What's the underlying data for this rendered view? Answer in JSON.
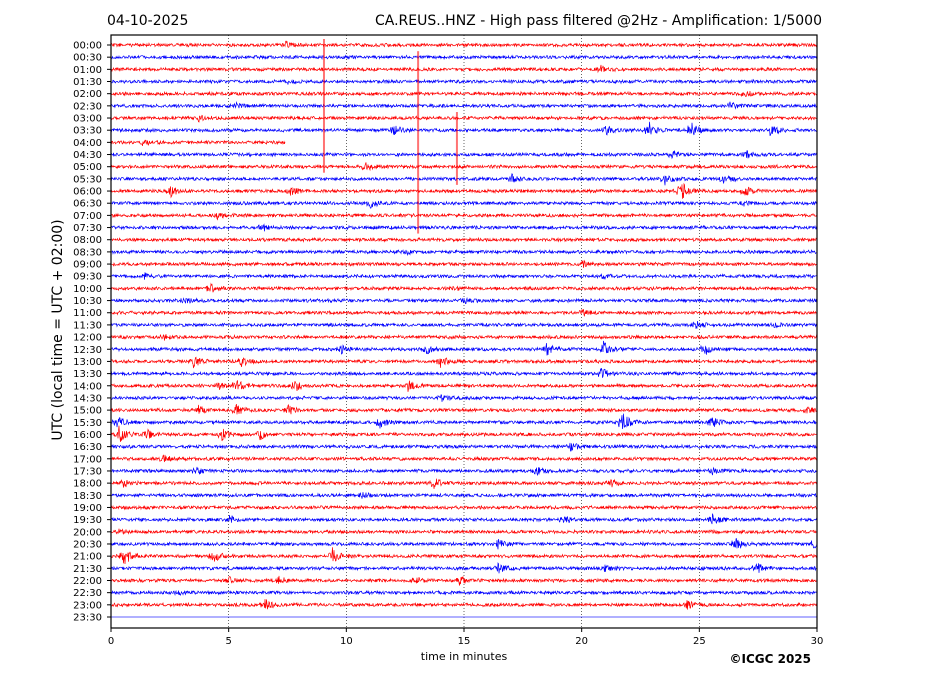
{
  "chart_data": {
    "type": "line",
    "date": "04-10-2025",
    "title": "CA.REUS..HNZ - High pass filtered @2Hz - Amplification: 1/5000",
    "xlabel": "time in minutes",
    "ylabel": "UTC (local time = UTC + 02:00)",
    "xlim": [
      0,
      30
    ],
    "xticks": [
      "0",
      "5",
      "10",
      "15",
      "20",
      "25",
      "30"
    ],
    "grid": "vertical dotted at every 5 minutes",
    "row_labels": [
      "00:00",
      "00:30",
      "01:00",
      "01:30",
      "02:00",
      "02:30",
      "03:00",
      "03:30",
      "04:00",
      "04:30",
      "05:00",
      "05:30",
      "06:00",
      "06:30",
      "07:00",
      "07:30",
      "08:00",
      "08:30",
      "09:00",
      "09:30",
      "10:00",
      "10:30",
      "11:00",
      "11:30",
      "12:00",
      "12:30",
      "13:00",
      "13:30",
      "14:00",
      "14:30",
      "15:00",
      "15:30",
      "16:00",
      "16:30",
      "17:00",
      "17:30",
      "18:00",
      "18:30",
      "19:00",
      "19:30",
      "20:00",
      "20:30",
      "21:00",
      "21:30",
      "22:00",
      "22:30",
      "23:00",
      "23:30"
    ],
    "series_colors": [
      "#ff0000",
      "#0000ff"
    ],
    "events": [
      [
        0,
        7.4,
        3
      ],
      [
        2,
        20.8,
        3
      ],
      [
        3,
        7.5,
        2
      ],
      [
        4,
        26.9,
        3
      ],
      [
        5,
        5.3,
        3
      ],
      [
        5,
        26.3,
        3
      ],
      [
        6,
        3.7,
        3
      ],
      [
        7,
        12,
        5
      ],
      [
        7,
        21,
        5
      ],
      [
        7,
        22.8,
        10
      ],
      [
        7,
        24.6,
        10
      ],
      [
        7,
        28,
        6
      ],
      [
        8,
        1.3,
        3
      ],
      [
        9,
        23.8,
        5
      ],
      [
        9,
        27,
        4
      ],
      [
        10,
        10.8,
        4
      ],
      [
        11,
        17,
        5
      ],
      [
        11,
        23.5,
        7
      ],
      [
        11,
        26,
        5
      ],
      [
        12,
        2.5,
        6
      ],
      [
        12,
        7.6,
        5
      ],
      [
        12,
        24.2,
        10
      ],
      [
        12,
        26.9,
        5
      ],
      [
        13,
        11,
        4
      ],
      [
        13,
        26.8,
        3
      ],
      [
        14,
        4.5,
        3
      ],
      [
        15,
        6.4,
        4
      ],
      [
        17,
        12.5,
        2
      ],
      [
        18,
        20,
        3
      ],
      [
        19,
        1.4,
        3
      ],
      [
        19,
        20.9,
        3
      ],
      [
        20,
        4.2,
        5
      ],
      [
        20,
        14.5,
        3
      ],
      [
        21,
        3.1,
        3
      ],
      [
        21,
        15,
        3
      ],
      [
        22,
        20,
        3
      ],
      [
        23,
        24.8,
        4
      ],
      [
        23,
        28.1,
        3
      ],
      [
        24,
        2.2,
        3
      ],
      [
        25,
        9.7,
        5
      ],
      [
        25,
        13.4,
        5
      ],
      [
        25,
        18.5,
        6
      ],
      [
        25,
        20.9,
        10
      ],
      [
        25,
        25.2,
        6
      ],
      [
        26,
        3.5,
        6
      ],
      [
        26,
        5.5,
        5
      ],
      [
        26,
        14,
        5
      ],
      [
        27,
        20.8,
        6
      ],
      [
        28,
        4.5,
        4
      ],
      [
        28,
        5.3,
        6
      ],
      [
        28,
        7.8,
        6
      ],
      [
        28,
        12.6,
        5
      ],
      [
        29,
        14,
        3
      ],
      [
        30,
        3.7,
        4
      ],
      [
        30,
        5.3,
        6
      ],
      [
        30,
        7.5,
        5
      ],
      [
        30,
        29.5,
        4
      ],
      [
        31,
        0.2,
        8
      ],
      [
        31,
        11.4,
        6
      ],
      [
        31,
        21.7,
        12
      ],
      [
        31,
        25.5,
        6
      ],
      [
        32,
        0.3,
        9
      ],
      [
        32,
        1.5,
        5
      ],
      [
        32,
        4.7,
        6
      ],
      [
        32,
        6.3,
        5
      ],
      [
        33,
        19.5,
        4
      ],
      [
        34,
        2.2,
        4
      ],
      [
        35,
        3.6,
        4
      ],
      [
        35,
        18,
        6
      ],
      [
        35,
        25.5,
        4
      ],
      [
        36,
        0.5,
        5
      ],
      [
        36,
        13.7,
        6
      ],
      [
        36,
        21.2,
        4
      ],
      [
        37,
        10.6,
        4
      ],
      [
        39,
        5,
        4
      ],
      [
        39,
        19.2,
        4
      ],
      [
        39,
        25.5,
        6
      ],
      [
        40,
        0.3,
        3
      ],
      [
        41,
        16.4,
        5
      ],
      [
        41,
        26.5,
        6
      ],
      [
        41,
        29.8,
        6
      ],
      [
        42,
        0.5,
        10
      ],
      [
        42,
        4.3,
        7
      ],
      [
        42,
        9.4,
        8
      ],
      [
        43,
        16.4,
        5
      ],
      [
        43,
        20.9,
        4
      ],
      [
        43,
        27.4,
        6
      ],
      [
        44,
        5,
        3
      ],
      [
        44,
        7.1,
        5
      ],
      [
        44,
        12.9,
        4
      ],
      [
        44,
        14.8,
        4
      ],
      [
        45,
        2.8,
        2
      ],
      [
        46,
        6.5,
        6
      ],
      [
        46,
        24.4,
        5
      ]
    ],
    "spikes": [
      [
        9.05,
        0,
        10
      ],
      [
        13.05,
        1,
        15
      ],
      [
        14.7,
        6,
        11
      ]
    ],
    "gaps": [
      [
        8,
        7.4
      ],
      [
        47,
        0
      ]
    ]
  },
  "footer": {
    "copyright": "©ICGC 2025"
  }
}
